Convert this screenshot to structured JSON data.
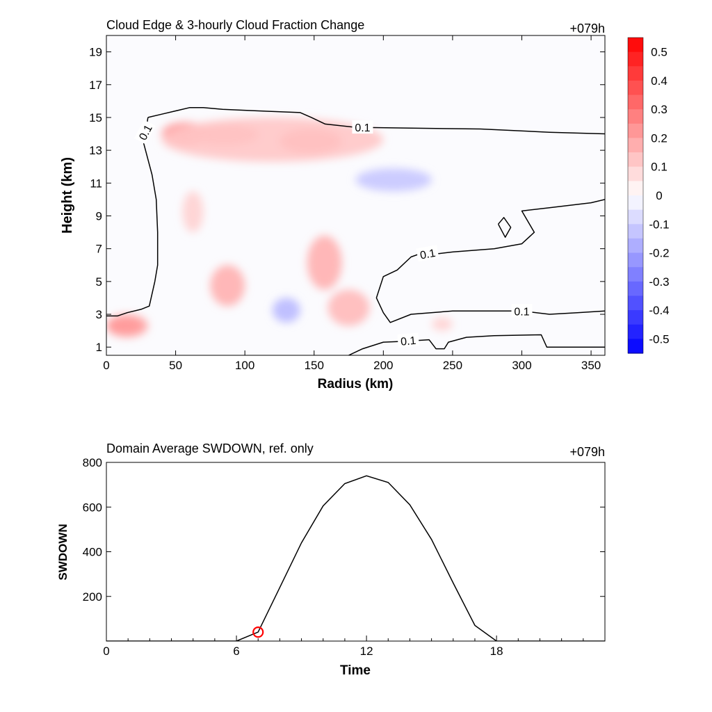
{
  "chart_data": [
    {
      "type": "heatmap",
      "title": "Cloud Edge & 3-hourly Cloud Fraction Change",
      "time_label": "+079h",
      "xlabel": "Radius (km)",
      "ylabel": "Height (km)",
      "xlim": [
        0,
        360
      ],
      "ylim": [
        0.5,
        20
      ],
      "x_ticks": [
        0,
        50,
        100,
        150,
        200,
        250,
        300,
        350
      ],
      "y_ticks": [
        1,
        3,
        5,
        7,
        9,
        11,
        13,
        15,
        17,
        19
      ],
      "colorbar": {
        "min": -0.55,
        "max": 0.55,
        "step": 0.05,
        "negative_color": "#0000ff",
        "positive_color": "#ff0000",
        "neutral_color": "#ffffff",
        "tick_values": [
          0.5,
          0.4,
          0.3,
          0.2,
          0.1,
          0,
          -0.1,
          -0.2,
          -0.3,
          -0.4,
          -0.5
        ],
        "tick_labels": [
          "0.5",
          "0.4",
          "0.3",
          "0.2",
          "0.1",
          "0",
          "-0.1",
          "-0.2",
          "-0.3",
          "-0.4",
          "-0.5"
        ]
      },
      "contour_label": "0.1",
      "contour_level": 0.1,
      "shaded_features": [
        {
          "x": [
            40,
            75
          ],
          "y": [
            13.3,
            14.7
          ],
          "value": 0.25
        },
        {
          "x": [
            60,
            110
          ],
          "y": [
            13.3,
            14.6
          ],
          "value": 0.22
        },
        {
          "x": [
            125,
            170
          ],
          "y": [
            12.8,
            14.3
          ],
          "value": 0.25
        },
        {
          "x": [
            40,
            200
          ],
          "y": [
            12.3,
            15.0
          ],
          "value": 0.12
        },
        {
          "x": [
            0,
            25
          ],
          "y": [
            1.8,
            2.8
          ],
          "value": 0.35
        },
        {
          "x": [
            0,
            30
          ],
          "y": [
            1.6,
            3.0
          ],
          "value": 0.2
        },
        {
          "x": [
            75,
            100
          ],
          "y": [
            3.5,
            6.0
          ],
          "value": 0.17
        },
        {
          "x": [
            145,
            170
          ],
          "y": [
            4.5,
            7.8
          ],
          "value": 0.17
        },
        {
          "x": [
            160,
            190
          ],
          "y": [
            2.3,
            4.5
          ],
          "value": 0.15
        },
        {
          "x": [
            120,
            140
          ],
          "y": [
            2.5,
            4.0
          ],
          "value": -0.15
        },
        {
          "x": [
            180,
            235
          ],
          "y": [
            10.5,
            11.9
          ],
          "value": -0.12
        },
        {
          "x": [
            55,
            70
          ],
          "y": [
            8.0,
            10.5
          ],
          "value": 0.1
        },
        {
          "x": [
            235,
            250
          ],
          "y": [
            2.0,
            2.8
          ],
          "value": 0.1
        }
      ],
      "contours": [
        {
          "points": [
            [
              30,
              15.0
            ],
            [
              40,
              15.2
            ],
            [
              60,
              15.6
            ],
            [
              70,
              15.6
            ],
            [
              84,
              15.5
            ],
            [
              110,
              15.4
            ],
            [
              140,
              15.3
            ],
            [
              148,
              15.0
            ],
            [
              158,
              14.6
            ],
            [
              180,
              14.4
            ],
            [
              220,
              14.35
            ],
            [
              270,
              14.3
            ],
            [
              320,
              14.1
            ],
            [
              360,
              14.0
            ]
          ]
        },
        {
          "points": [
            [
              30,
              15.0
            ],
            [
              27,
              13.4
            ],
            [
              33,
              11.5
            ],
            [
              36,
              10.0
            ],
            [
              37,
              8.0
            ],
            [
              37,
              6.0
            ],
            [
              35,
              5.0
            ],
            [
              31,
              3.5
            ],
            [
              25,
              3.3
            ],
            [
              15,
              3.1
            ],
            [
              8,
              2.9
            ],
            [
              0,
              2.9
            ]
          ]
        },
        {
          "points": [
            [
              360,
              10.0
            ],
            [
              350,
              9.8
            ],
            [
              320,
              9.5
            ],
            [
              300,
              9.3
            ],
            [
              309,
              8.0
            ],
            [
              300,
              7.3
            ],
            [
              280,
              7.0
            ],
            [
              250,
              6.8
            ],
            [
              240,
              6.7
            ],
            [
              230,
              6.8
            ],
            [
              220,
              6.5
            ],
            [
              210,
              5.7
            ],
            [
              200,
              5.3
            ],
            [
              195,
              4.0
            ],
            [
              200,
              3.1
            ],
            [
              205,
              2.5
            ],
            [
              220,
              3.0
            ],
            [
              250,
              3.2
            ],
            [
              300,
              3.2
            ],
            [
              320,
              3.0
            ],
            [
              340,
              3.1
            ],
            [
              360,
              3.2
            ]
          ]
        },
        {
          "points": [
            [
              175,
              0.5
            ],
            [
              185,
              0.9
            ],
            [
              200,
              1.3
            ],
            [
              215,
              1.35
            ],
            [
              233,
              1.45
            ],
            [
              238,
              0.9
            ],
            [
              244,
              0.9
            ],
            [
              247,
              1.3
            ],
            [
              260,
              1.6
            ],
            [
              280,
              1.7
            ],
            [
              314,
              1.75
            ],
            [
              318,
              1.0
            ],
            [
              350,
              1.0
            ],
            [
              360,
              1.0
            ]
          ]
        },
        {
          "points": [
            [
              283,
              8.5
            ],
            [
              287,
              8.9
            ],
            [
              292,
              8.3
            ],
            [
              288,
              7.7
            ],
            [
              283,
              8.5
            ]
          ]
        }
      ]
    },
    {
      "type": "line",
      "title": "Domain Average SWDOWN, ref. only",
      "time_label": "+079h",
      "xlabel": "Time",
      "ylabel": "SWDOWN",
      "xlim": [
        0,
        23
      ],
      "ylim": [
        0,
        800
      ],
      "x_ticks": [
        0,
        6,
        12,
        18
      ],
      "y_ticks": [
        200,
        400,
        600,
        800
      ],
      "x_minor_ticks": [
        1,
        2,
        3,
        4,
        5,
        7,
        8,
        9,
        10,
        11,
        13,
        14,
        15,
        16,
        17,
        19,
        20,
        21,
        22
      ],
      "series": [
        {
          "x": [
            0,
            1,
            2,
            3,
            4,
            5,
            6,
            7,
            8,
            9,
            10,
            11,
            12,
            13,
            14,
            15,
            16,
            17,
            18,
            19,
            20,
            21,
            22,
            23
          ],
          "values": [
            0,
            0,
            0,
            0,
            0,
            0,
            0,
            40,
            240,
            440,
            605,
            705,
            740,
            710,
            610,
            455,
            260,
            70,
            0,
            0,
            0,
            0,
            0,
            0
          ]
        }
      ],
      "marker": {
        "x": 7,
        "y": 40,
        "color": "#ff0000"
      }
    }
  ]
}
